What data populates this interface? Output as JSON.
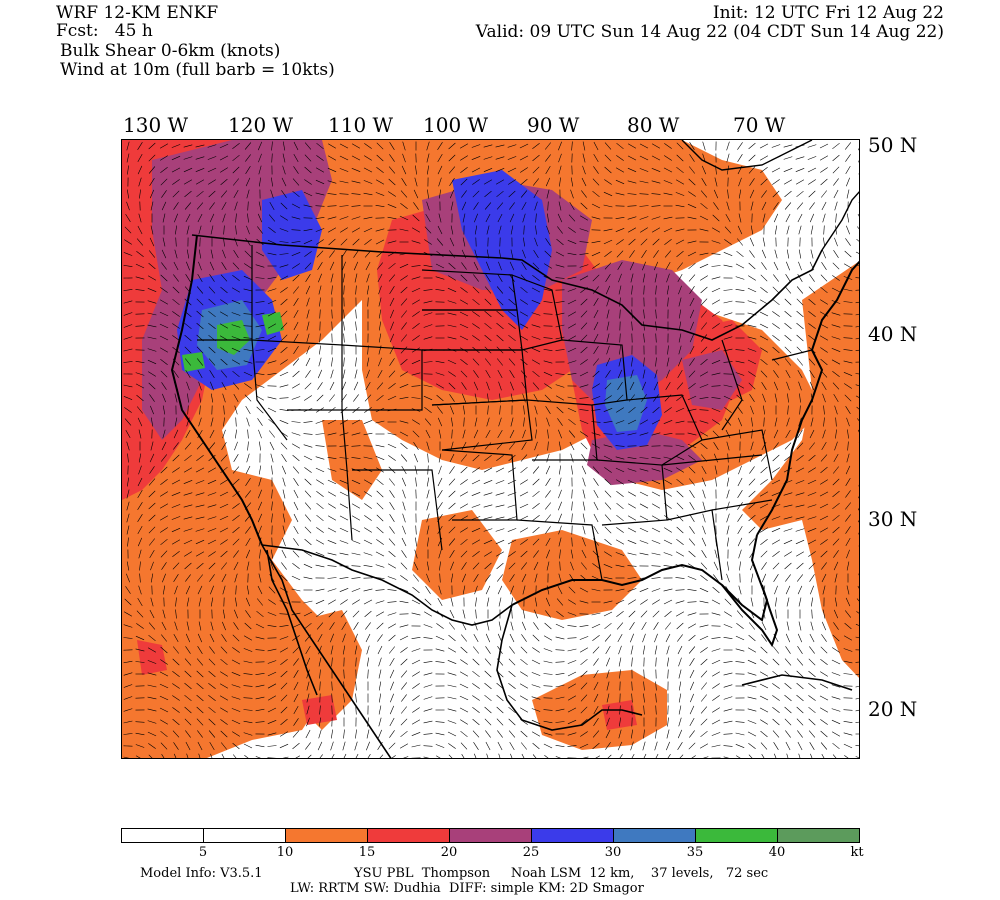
{
  "header": {
    "model": "WRF 12-KM ENKF",
    "fcst": "Fcst:   45 h",
    "field1": "Bulk Shear 0-6km (knots)",
    "field2": "Wind at 10m (full barb = 10kts)",
    "init": "Init: 12 UTC Fri 12 Aug 22",
    "valid": "Valid: 09 UTC Sun 14 Aug 22 (04 CDT Sun 14 Aug 22)"
  },
  "longitudes": [
    "130 W",
    "120 W",
    "110 W",
    "100 W",
    "90 W",
    "80 W",
    "70 W"
  ],
  "latitudes": [
    "50 N",
    "40 N",
    "30 N",
    "20 N"
  ],
  "colorbar": {
    "labels": [
      "5",
      "10",
      "15",
      "20",
      "25",
      "30",
      "35",
      "40",
      "kt"
    ],
    "colors": [
      "#ffffff",
      "#ffffff",
      "#f5772f",
      "#ef3b3b",
      "#a8407a",
      "#3b3bea",
      "#3f79c0",
      "#3bb93b",
      "#5c9b5c"
    ]
  },
  "footer": {
    "line1_left": "Model Info: V3.5.1",
    "line1_right": "YSU PBL  Thompson     Noah LSM  12 km,    37 levels,   72 sec",
    "line2": "LW: RRTM SW: Dudhia  DIFF: simple KM: 2D Smagor"
  }
}
